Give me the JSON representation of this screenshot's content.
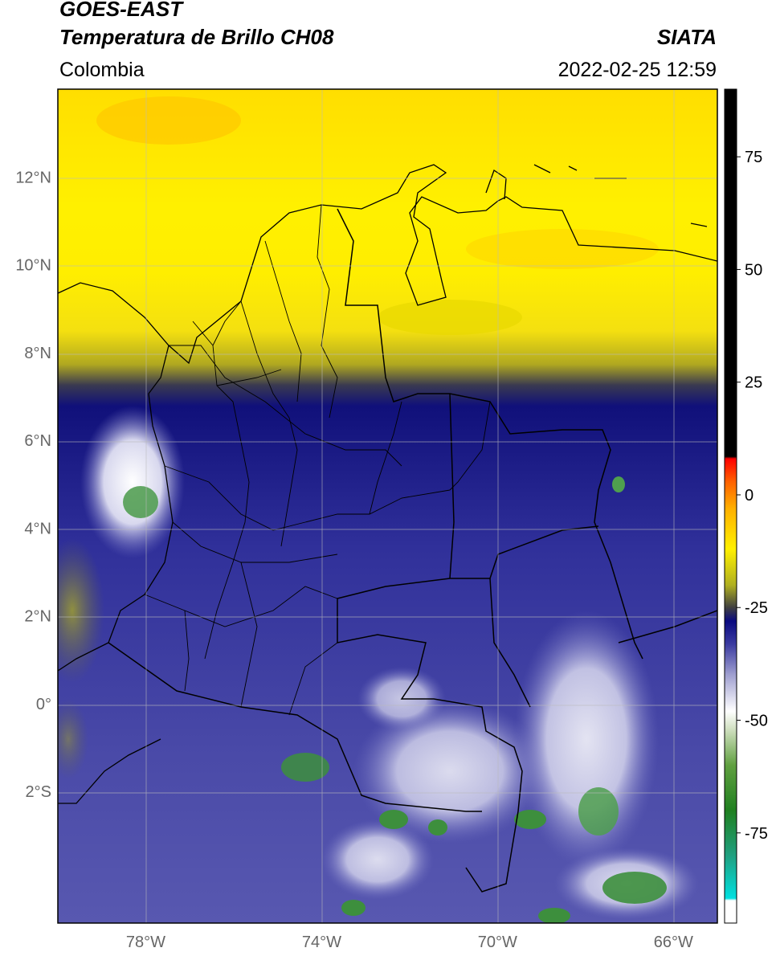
{
  "header": {
    "line1": "GOES-EAST",
    "line2": "Temperatura de Brillo CH08",
    "region": "Colombia",
    "org": "SIATA",
    "datetime": "2022-02-25 12:59"
  },
  "map": {
    "lon_range": [
      -80,
      -65
    ],
    "lat_range": [
      -5,
      14
    ],
    "lat_ticks": [
      {
        "value": 12,
        "label": "12°N"
      },
      {
        "value": 10,
        "label": "10°N"
      },
      {
        "value": 8,
        "label": "8°N"
      },
      {
        "value": 6,
        "label": "6°N"
      },
      {
        "value": 4,
        "label": "4°N"
      },
      {
        "value": 2,
        "label": "2°N"
      },
      {
        "value": 0,
        "label": "0°"
      },
      {
        "value": -2,
        "label": "2°S"
      }
    ],
    "lon_ticks": [
      {
        "value": -78,
        "label": "78°W"
      },
      {
        "value": -74,
        "label": "74°W"
      },
      {
        "value": -70,
        "label": "70°W"
      },
      {
        "value": -66,
        "label": "66°W"
      }
    ]
  },
  "colorbar": {
    "range": [
      -95,
      90
    ],
    "ticks": [
      {
        "value": 75,
        "label": "75"
      },
      {
        "value": 50,
        "label": "50"
      },
      {
        "value": 25,
        "label": "25"
      },
      {
        "value": 0,
        "label": "0"
      },
      {
        "value": -25,
        "label": "-25"
      },
      {
        "value": -50,
        "label": "-50"
      },
      {
        "value": -75,
        "label": "-75"
      }
    ],
    "stops": [
      {
        "value": -95,
        "color": "#ffffff"
      },
      {
        "value": -90,
        "color": "#ffffff"
      },
      {
        "value": -89.5,
        "color": "#00e0e0"
      },
      {
        "value": -80,
        "color": "#20a080"
      },
      {
        "value": -70,
        "color": "#208020"
      },
      {
        "value": -60,
        "color": "#60a040"
      },
      {
        "value": -52,
        "color": "#d0e0c0"
      },
      {
        "value": -48,
        "color": "#ffffff"
      },
      {
        "value": -40,
        "color": "#a0a0d0"
      },
      {
        "value": -33,
        "color": "#3a3aa0"
      },
      {
        "value": -28,
        "color": "#0a0a80"
      },
      {
        "value": -25,
        "color": "#404040"
      },
      {
        "value": -20,
        "color": "#b0b020"
      },
      {
        "value": -12,
        "color": "#fff000"
      },
      {
        "value": -3,
        "color": "#ffb000"
      },
      {
        "value": 3,
        "color": "#ff6000"
      },
      {
        "value": 8,
        "color": "#ff0000"
      },
      {
        "value": 8.5,
        "color": "#000000"
      },
      {
        "value": 90,
        "color": "#000000"
      }
    ]
  },
  "colors": {
    "cold_cloud": "#1a1a8c",
    "cloud_top": "#ffffff",
    "deep_convection": "#2e8b2e",
    "dry_air": "#ffee00",
    "frame": "#000000",
    "grid": "#bbbbbb"
  }
}
